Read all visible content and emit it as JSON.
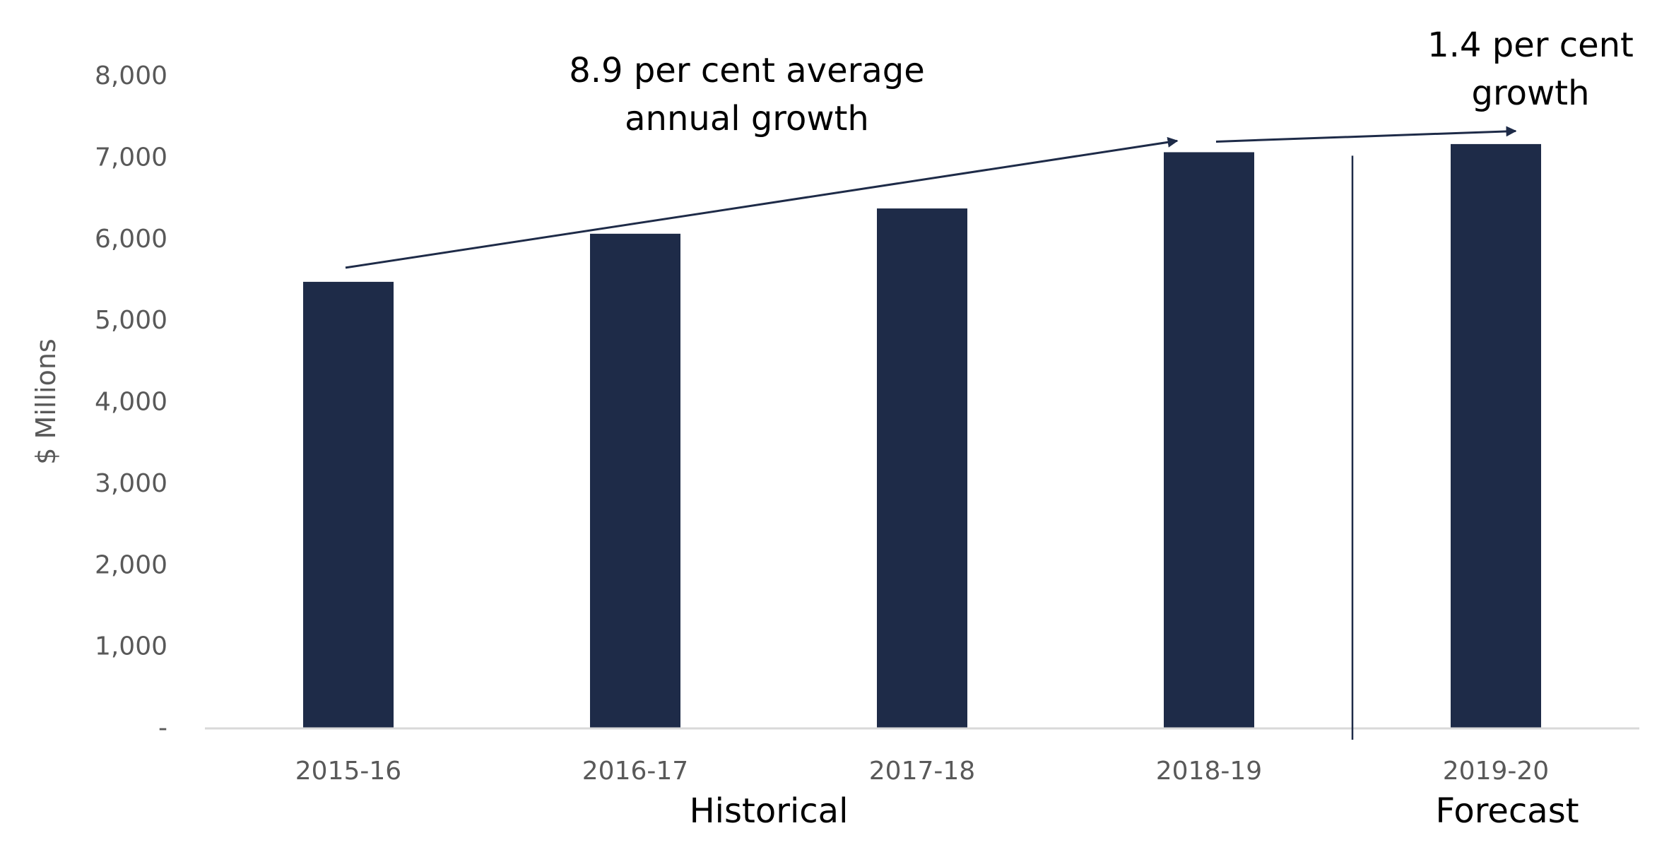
{
  "chart_data": {
    "type": "bar",
    "categories": [
      "2015-16",
      "2016-17",
      "2017-18",
      "2018-19",
      "2019-20"
    ],
    "values": [
      5470,
      6060,
      6370,
      7060,
      7160
    ],
    "title": "",
    "xlabel": "",
    "ylabel": "$ Millions",
    "ylim": [
      0,
      8000
    ],
    "yticks": [
      0,
      1000,
      2000,
      3000,
      4000,
      5000,
      6000,
      7000,
      8000
    ],
    "ytick_labels": [
      "-",
      "1,000",
      "2,000",
      "3,000",
      "4,000",
      "5,000",
      "6,000",
      "7,000",
      "8,000"
    ],
    "grid": false,
    "legend": "none",
    "groups": [
      {
        "label": "Historical",
        "categories": [
          "2015-16",
          "2016-17",
          "2017-18",
          "2018-19"
        ]
      },
      {
        "label": "Forecast",
        "categories": [
          "2019-20"
        ]
      }
    ],
    "annotations": [
      {
        "lines": [
          "8.9 per cent average",
          "annual growth"
        ],
        "from": "2015-16",
        "to": "2018-19"
      },
      {
        "lines": [
          "1.4 per cent",
          "growth"
        ],
        "from": "2018-19",
        "to": "2019-20"
      }
    ],
    "colors": {
      "bar": "#1e2b48",
      "axis": "#d9d9d9",
      "arrow": "#1e2b48",
      "tick_text": "#595959",
      "text": "#000000"
    }
  }
}
